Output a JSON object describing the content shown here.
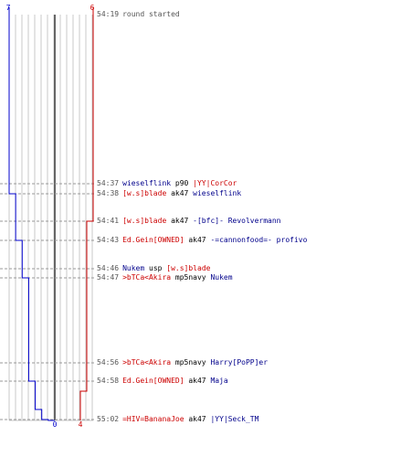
{
  "chart_data": {
    "type": "line",
    "title": "",
    "xlabel": "",
    "ylabel": "",
    "top_counts": {
      "blue": "7",
      "red": "6"
    },
    "bottom_counts": {
      "blue": "0",
      "red": "4"
    },
    "colors": {
      "blue": "#0000cc",
      "red": "#cc0000",
      "grid": "#c8c8c8",
      "guide": "#999999",
      "center": "#666666"
    },
    "players_alive": {
      "blue": [
        7,
        7,
        6,
        6,
        5,
        5,
        4,
        4,
        3,
        3,
        2,
        1,
        0
      ],
      "red": [
        6,
        6,
        6,
        5,
        5,
        5,
        5,
        5,
        5,
        4,
        4,
        4,
        4
      ]
    },
    "events": [
      {
        "time": "54:19",
        "text": "round started",
        "killer": "",
        "weapon": "",
        "victim": ""
      },
      {
        "time": "54:37",
        "killer": "wieselflink",
        "killer_team": "blue",
        "weapon": "p90",
        "victim": "|YY|CorCor",
        "victim_team": "red"
      },
      {
        "time": "54:38",
        "killer": "[w.s]blade",
        "killer_team": "red",
        "weapon": "ak47",
        "victim": "wieselflink",
        "victim_team": "blue"
      },
      {
        "time": "54:41",
        "killer": "[w.s]blade",
        "killer_team": "red",
        "weapon": "ak47",
        "victim": "-[bfc]- Revolvermann",
        "victim_team": "blue"
      },
      {
        "time": "54:43",
        "killer": "Ed.Gein[OWNED]",
        "killer_team": "red",
        "weapon": "ak47",
        "victim": "-=cannonfood=- profivo",
        "victim_team": "blue"
      },
      {
        "time": "54:46",
        "killer": "Nukem",
        "killer_team": "blue",
        "weapon": "usp",
        "victim": "[w.s]blade",
        "victim_team": "red"
      },
      {
        "time": "54:47",
        "killer": ">bTCa<Akira",
        "killer_team": "red",
        "weapon": "mp5navy",
        "victim": "Nukem",
        "victim_team": "blue"
      },
      {
        "time": "54:56",
        "killer": ">bTCa<Akira",
        "killer_team": "red",
        "weapon": "mp5navy",
        "victim": "Harry[PoPP]er",
        "victim_team": "blue"
      },
      {
        "time": "54:58",
        "killer": "Ed.Gein[OWNED]",
        "killer_team": "red",
        "weapon": "ak47",
        "victim": "Maja",
        "victim_team": "blue"
      },
      {
        "time": "55:02",
        "killer": "=HIV=BananaJoe",
        "killer_team": "red",
        "weapon": "ak47",
        "victim": "|YY|Seck_TM",
        "victim_team": "blue"
      }
    ]
  }
}
